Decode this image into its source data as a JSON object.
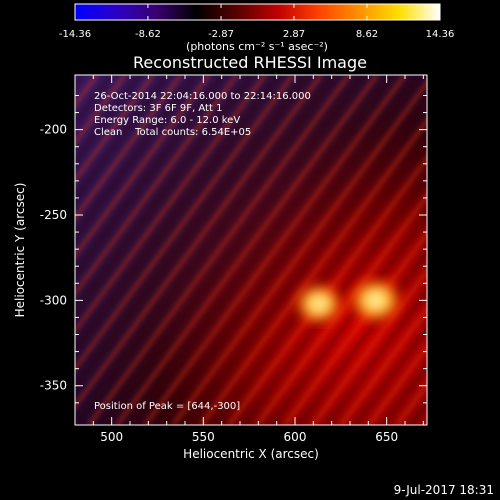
{
  "colorbar": {
    "ticks": [
      "-14.36",
      "-8.62",
      "-2.87",
      "2.87",
      "8.62",
      "14.36"
    ],
    "tick_values": [
      -14.36,
      -8.62,
      -2.87,
      2.87,
      8.62,
      14.36
    ],
    "range": [
      -14.36,
      14.36
    ],
    "units_label": "(photons cm⁻² s⁻¹ asec⁻²)",
    "colors": [
      "#0000ff",
      "#2a00c8",
      "#3a0070",
      "#000000",
      "#5a0000",
      "#c00000",
      "#ff4000",
      "#ff9000",
      "#ffe000",
      "#ffffff"
    ]
  },
  "chart_data": {
    "type": "heatmap",
    "title": "Reconstructed RHESSI Image",
    "xlabel": "Heliocentric X (arcsec)",
    "ylabel": "Heliocentric Y (arcsec)",
    "xlim": [
      480,
      672
    ],
    "ylim": [
      -373,
      -168
    ],
    "xticks": [
      500,
      550,
      600,
      650
    ],
    "yticks": [
      -200,
      -250,
      -300,
      -350
    ],
    "annotation_lines": [
      "26-Oct-2014 22:04:16.000 to 22:14:16.000",
      "Detectors: 3F 6F 9F, Att 1",
      "Energy Range: 6.0 - 12.0 keV",
      "Clean    Total counts: 6.54E+05"
    ],
    "peak_label": "Position of Peak = [644,-300]",
    "peaks": [
      {
        "x": 644,
        "y": -300,
        "value": 14.36
      },
      {
        "x": 613,
        "y": -302,
        "value": 12.5
      }
    ]
  },
  "footer": {
    "timestamp": "9-Jul-2017 18:31"
  }
}
